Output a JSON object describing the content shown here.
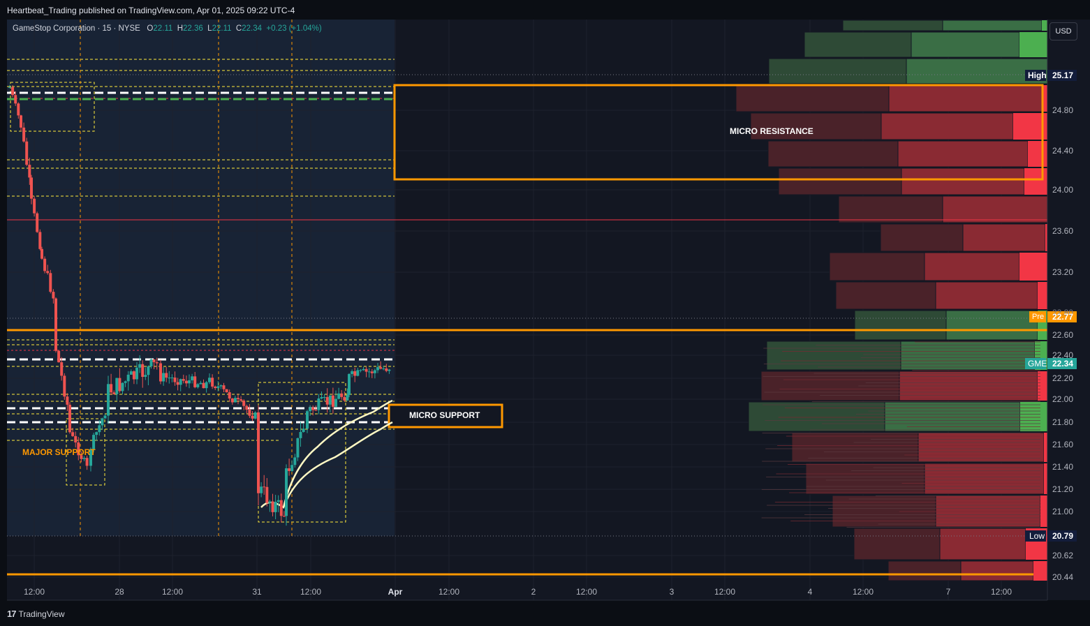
{
  "header": {
    "published": "Heartbeat_Trading published on TradingView.com, Apr 01, 2025 09:22 UTC-4"
  },
  "legend": {
    "symbol": "GameStop Corporation · 15 · NYSE",
    "o_label": "O",
    "o_value": "22.11",
    "h_label": "H",
    "h_value": "22.36",
    "l_label": "L",
    "l_value": "22.11",
    "c_label": "C",
    "c_value": "22.34",
    "change": "+0.23 (+1.04%)"
  },
  "currency_button": "USD",
  "price_axis": [
    "24.80",
    "24.40",
    "24.00",
    "23.60",
    "23.20",
    "22.60",
    "22.40",
    "22.20",
    "22.00",
    "21.80",
    "21.60",
    "21.40",
    "21.20",
    "21.00",
    "20.62",
    "20.44"
  ],
  "price_tags": {
    "high_label": "High",
    "high_value": "25.17",
    "pre_label": "Pre",
    "pre_value": "22.77",
    "gme_label": "GME",
    "gme_value": "22.34",
    "low_label": "Low",
    "low_value": "20.79",
    "partial_value": "22.80"
  },
  "time_axis": [
    "12:00",
    "28",
    "12:00",
    "31",
    "12:00",
    "Apr",
    "12:00",
    "2",
    "12:00",
    "3",
    "12:00",
    "4",
    "12:00",
    "7",
    "12:00"
  ],
  "annotations": {
    "micro_resistance": "MICRO RESISTANCE",
    "micro_support": "MICRO SUPPORT",
    "major_support": "MAJOR SUPPORT"
  },
  "footer": {
    "brand": "TradingView",
    "logo": "17"
  },
  "colors": {
    "bg": "#131722",
    "up": "#26a69a",
    "down": "#ef5350",
    "orange": "#ff9800",
    "vp_up": "#4caf50",
    "vp_down": "#f23645",
    "ema": "#fff9c4",
    "yellow_dash": "#ffeb3b"
  },
  "chart_data": {
    "type": "candlestick",
    "symbol": "GME",
    "interval": "15",
    "ylim": [
      20.4,
      25.4
    ],
    "candles_approx": [
      {
        "t": "Mar 27 09:30",
        "o": 25.05,
        "h": 25.17,
        "l": 24.95,
        "c": 25.0
      },
      {
        "t": "Mar 27 10:30",
        "o": 24.6,
        "h": 24.7,
        "l": 24.2,
        "c": 24.3
      },
      {
        "t": "Mar 27 12:00",
        "o": 23.7,
        "h": 23.9,
        "l": 23.1,
        "c": 23.3
      },
      {
        "t": "Mar 27 14:00",
        "o": 22.6,
        "h": 22.8,
        "l": 21.6,
        "c": 21.8
      },
      {
        "t": "Mar 27 15:30",
        "o": 21.3,
        "h": 21.5,
        "l": 21.2,
        "c": 21.4
      },
      {
        "t": "Mar 28 09:30",
        "o": 21.8,
        "h": 22.3,
        "l": 21.7,
        "c": 22.1
      },
      {
        "t": "Mar 28 12:00",
        "o": 22.2,
        "h": 22.5,
        "l": 21.9,
        "c": 22.3
      },
      {
        "t": "Mar 28 15:30",
        "o": 22.0,
        "h": 22.3,
        "l": 21.8,
        "c": 21.9
      },
      {
        "t": "Mar 31 09:30",
        "o": 21.3,
        "h": 21.5,
        "l": 20.79,
        "c": 20.9
      },
      {
        "t": "Mar 31 12:00",
        "o": 21.5,
        "h": 21.9,
        "l": 21.4,
        "c": 21.8
      },
      {
        "t": "Mar 31 15:30",
        "o": 22.2,
        "h": 22.6,
        "l": 22.1,
        "c": 22.34
      }
    ],
    "levels": {
      "high": 25.17,
      "premarket": 22.77,
      "last": 22.34,
      "low": 20.79
    },
    "zones": [
      {
        "name": "MICRO RESISTANCE",
        "from": 24.1,
        "to": 25.05
      },
      {
        "name": "MICRO SUPPORT",
        "from": 21.85,
        "to": 22.05
      },
      {
        "name": "MAJOR SUPPORT",
        "price": 21.6
      }
    ]
  }
}
